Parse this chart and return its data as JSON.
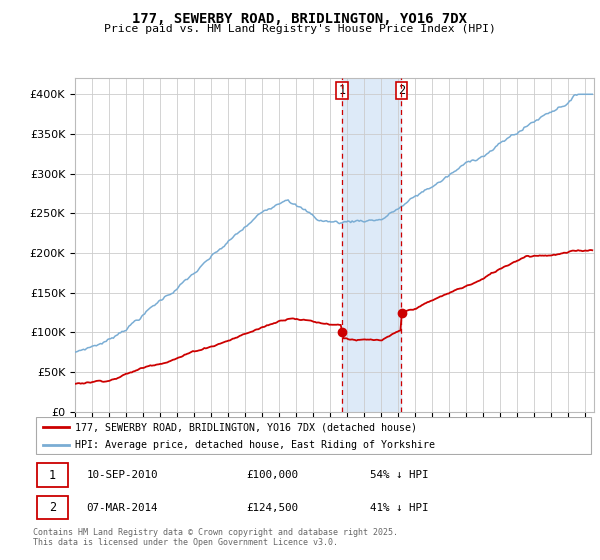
{
  "title": "177, SEWERBY ROAD, BRIDLINGTON, YO16 7DX",
  "subtitle": "Price paid vs. HM Land Registry's House Price Index (HPI)",
  "legend_property": "177, SEWERBY ROAD, BRIDLINGTON, YO16 7DX (detached house)",
  "legend_hpi": "HPI: Average price, detached house, East Riding of Yorkshire",
  "property_color": "#cc0000",
  "hpi_color": "#7aadd4",
  "highlight_color": "#ddeaf8",
  "vline_color": "#cc0000",
  "purchase1_date": 2010.69,
  "purchase1_price": 100000,
  "purchase2_date": 2014.17,
  "purchase2_price": 124500,
  "table1_date": "10-SEP-2010",
  "table1_price": "£100,000",
  "table1_hpi": "54% ↓ HPI",
  "table2_date": "07-MAR-2014",
  "table2_price": "£124,500",
  "table2_hpi": "41% ↓ HPI",
  "footer": "Contains HM Land Registry data © Crown copyright and database right 2025.\nThis data is licensed under the Open Government Licence v3.0.",
  "ylim": [
    0,
    420000
  ],
  "yticks": [
    0,
    50000,
    100000,
    150000,
    200000,
    250000,
    300000,
    350000,
    400000
  ],
  "xmin": 1995.0,
  "xmax": 2025.5
}
